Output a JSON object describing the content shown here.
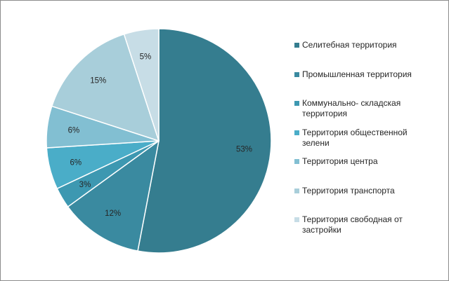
{
  "chart_data": {
    "type": "pie",
    "title": "",
    "slices": [
      {
        "label": "Селитебная территория",
        "value": 53,
        "value_label": "53%",
        "color": "#357d8f"
      },
      {
        "label": "Промышленная территория",
        "value": 12,
        "value_label": "12%",
        "color": "#3a8aa0"
      },
      {
        "label": "Коммунально- складская территория",
        "value": 3,
        "value_label": "3%",
        "color": "#3d98b1"
      },
      {
        "label": "Территория общественной зелени",
        "value": 6,
        "value_label": "6%",
        "color": "#4aadc8"
      },
      {
        "label": "Территория центра",
        "value": 6,
        "value_label": "6%",
        "color": "#82bfd2"
      },
      {
        "label": "Территория транспорта",
        "value": 15,
        "value_label": "15%",
        "color": "#a8ceda"
      },
      {
        "label": "Территория свободная от застройки",
        "value": 5,
        "value_label": "5%",
        "color": "#c7dde6"
      }
    ],
    "legend_position": "right"
  }
}
